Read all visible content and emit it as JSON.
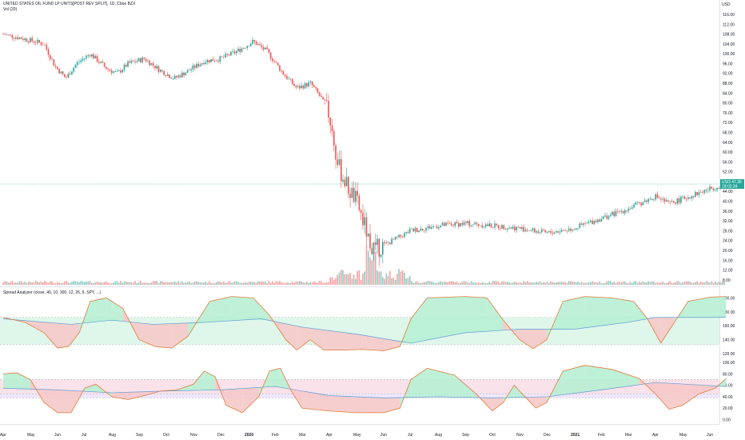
{
  "header": {
    "title": "UNITED STATES OIL FUND LP UNITS[POST REV SPLIT], 1D, Cboe BZX",
    "vol_label": "Vol (20)",
    "currency": "USD",
    "indicator_label": "Spread Analyzer (close, 40, 10, 300, 12, 26, 9, SPY, ...)"
  },
  "colors": {
    "up": "#26a69a",
    "down": "#ef5350",
    "osc_up_fill": "#b7f0d4",
    "osc_down_fill": "#f6c9c9",
    "band_green": "#d9f6e8",
    "band_purple": "#ece3fb",
    "band_pink": "#fbe0e6",
    "price_tag": "#26a69a"
  },
  "chart_data": [
    {
      "type": "candlestick",
      "title": "UNITED STATES OIL FUND LP UNITS[POST REV SPLIT], 1D, Cboe BZX",
      "ylabel": "USD",
      "ylim": [
        6.0,
        116.0
      ],
      "yticks": [
        "116.00",
        "112.00",
        "108.00",
        "104.00",
        "100.00",
        "96.00",
        "92.00",
        "88.00",
        "84.00",
        "80.00",
        "76.00",
        "72.00",
        "68.00",
        "64.00",
        "60.00",
        "56.00",
        "52.00",
        "48.00",
        "44.00",
        "40.00",
        "36.00",
        "32.00",
        "28.00",
        "24.00",
        "20.00",
        "16.00",
        "12.00",
        "8.00"
      ],
      "xticks": [
        "Apr",
        "May",
        "Jun",
        "Jul",
        "Aug",
        "Sep",
        "Oct",
        "Nov",
        "Dec",
        "2020",
        "Feb",
        "Mar",
        "Apr",
        "May",
        "Jun",
        "Jul",
        "Aug",
        "Sep",
        "Oct",
        "Nov",
        "Dec",
        "2021",
        "Feb",
        "Mar",
        "Apr",
        "May",
        "Jun"
      ],
      "last_price": "USO 47.36",
      "last_price_sub": "18:02:34",
      "price_path": [
        {
          "m": 0,
          "p": 108
        },
        {
          "m": 0.8,
          "p": 106
        },
        {
          "m": 1.5,
          "p": 104
        },
        {
          "m": 1.9,
          "p": 95
        },
        {
          "m": 2.3,
          "p": 90
        },
        {
          "m": 2.7,
          "p": 96
        },
        {
          "m": 3.2,
          "p": 100
        },
        {
          "m": 3.8,
          "p": 94
        },
        {
          "m": 4.2,
          "p": 92
        },
        {
          "m": 4.6,
          "p": 96
        },
        {
          "m": 5.2,
          "p": 98
        },
        {
          "m": 5.8,
          "p": 93
        },
        {
          "m": 6.3,
          "p": 90
        },
        {
          "m": 6.8,
          "p": 93
        },
        {
          "m": 7.4,
          "p": 97
        },
        {
          "m": 8.0,
          "p": 98
        },
        {
          "m": 8.6,
          "p": 101
        },
        {
          "m": 9.2,
          "p": 105
        },
        {
          "m": 9.7,
          "p": 101
        },
        {
          "m": 10.3,
          "p": 92
        },
        {
          "m": 10.8,
          "p": 86
        },
        {
          "m": 11.3,
          "p": 88
        },
        {
          "m": 11.7,
          "p": 82
        },
        {
          "m": 12.0,
          "p": 75
        },
        {
          "m": 12.3,
          "p": 55
        },
        {
          "m": 12.7,
          "p": 45
        },
        {
          "m": 13.0,
          "p": 40
        },
        {
          "m": 13.3,
          "p": 30
        },
        {
          "m": 13.6,
          "p": 20
        },
        {
          "m": 14.0,
          "p": 22
        },
        {
          "m": 14.5,
          "p": 25
        },
        {
          "m": 15.0,
          "p": 28
        },
        {
          "m": 16.0,
          "p": 30
        },
        {
          "m": 17.0,
          "p": 31
        },
        {
          "m": 18.0,
          "p": 30
        },
        {
          "m": 19.0,
          "p": 29
        },
        {
          "m": 20.0,
          "p": 27
        },
        {
          "m": 21.0,
          "p": 29
        },
        {
          "m": 22.0,
          "p": 33
        },
        {
          "m": 23.0,
          "p": 37
        },
        {
          "m": 24.0,
          "p": 42
        },
        {
          "m": 24.5,
          "p": 39
        },
        {
          "m": 25.0,
          "p": 41
        },
        {
          "m": 26.0,
          "p": 45
        },
        {
          "m": 26.6,
          "p": 47
        }
      ]
    },
    {
      "type": "bar",
      "title": "Vol (20)",
      "note": "volume histogram under price"
    },
    {
      "type": "line",
      "title": "Spread Analyzer (close, 40, 10, 300, 12, 26, 9, SPY, ...)",
      "ylim": [
        120,
        205
      ],
      "yticks": [
        "200.00",
        "180.00",
        "160.00",
        "140.00",
        "120.00"
      ],
      "band": [
        133,
        172
      ],
      "osc": [
        {
          "m": 0,
          "v": 172
        },
        {
          "m": 0.8,
          "v": 165
        },
        {
          "m": 1.5,
          "v": 150
        },
        {
          "m": 2.0,
          "v": 128
        },
        {
          "m": 2.4,
          "v": 130
        },
        {
          "m": 2.8,
          "v": 150
        },
        {
          "m": 3.2,
          "v": 195
        },
        {
          "m": 3.8,
          "v": 200
        },
        {
          "m": 4.4,
          "v": 185
        },
        {
          "m": 5.0,
          "v": 140
        },
        {
          "m": 5.6,
          "v": 130
        },
        {
          "m": 6.2,
          "v": 128
        },
        {
          "m": 6.8,
          "v": 145
        },
        {
          "m": 7.6,
          "v": 195
        },
        {
          "m": 8.4,
          "v": 202
        },
        {
          "m": 9.2,
          "v": 200
        },
        {
          "m": 9.8,
          "v": 175
        },
        {
          "m": 10.4,
          "v": 140
        },
        {
          "m": 10.8,
          "v": 125
        },
        {
          "m": 11.3,
          "v": 140
        },
        {
          "m": 11.8,
          "v": 125
        },
        {
          "m": 12.5,
          "v": 125
        },
        {
          "m": 13.2,
          "v": 126
        },
        {
          "m": 14.0,
          "v": 124
        },
        {
          "m": 14.6,
          "v": 130
        },
        {
          "m": 15.0,
          "v": 170
        },
        {
          "m": 15.6,
          "v": 200
        },
        {
          "m": 17.0,
          "v": 202
        },
        {
          "m": 17.8,
          "v": 200
        },
        {
          "m": 18.4,
          "v": 168
        },
        {
          "m": 19.0,
          "v": 140
        },
        {
          "m": 19.5,
          "v": 127
        },
        {
          "m": 20.0,
          "v": 140
        },
        {
          "m": 20.6,
          "v": 195
        },
        {
          "m": 21.4,
          "v": 202
        },
        {
          "m": 22.4,
          "v": 200
        },
        {
          "m": 23.2,
          "v": 195
        },
        {
          "m": 23.7,
          "v": 170
        },
        {
          "m": 24.2,
          "v": 135
        },
        {
          "m": 24.7,
          "v": 165
        },
        {
          "m": 25.2,
          "v": 195
        },
        {
          "m": 26.0,
          "v": 201
        },
        {
          "m": 26.6,
          "v": 202
        }
      ],
      "signal": [
        {
          "m": 0,
          "v": 170
        },
        {
          "m": 2.5,
          "v": 162
        },
        {
          "m": 4.0,
          "v": 168
        },
        {
          "m": 5.5,
          "v": 162
        },
        {
          "m": 7.5,
          "v": 165
        },
        {
          "m": 9.5,
          "v": 170
        },
        {
          "m": 11.0,
          "v": 158
        },
        {
          "m": 13.0,
          "v": 148
        },
        {
          "m": 15.0,
          "v": 135
        },
        {
          "m": 17.0,
          "v": 150
        },
        {
          "m": 19.0,
          "v": 155
        },
        {
          "m": 21.0,
          "v": 155
        },
        {
          "m": 23.0,
          "v": 165
        },
        {
          "m": 24.0,
          "v": 172
        },
        {
          "m": 26.6,
          "v": 172
        }
      ]
    },
    {
      "type": "line",
      "title": "",
      "ylim": [
        -5,
        110
      ],
      "yticks": [
        "100.00",
        "80.00",
        "60.00",
        "40.00",
        "20.00",
        "0.00"
      ],
      "band_purple": [
        38,
        70
      ],
      "band_pink": [
        45,
        70
      ],
      "osc": [
        {
          "m": 0,
          "v": 80
        },
        {
          "m": 0.5,
          "v": 82
        },
        {
          "m": 1.0,
          "v": 70
        },
        {
          "m": 1.5,
          "v": 30
        },
        {
          "m": 2.0,
          "v": 12
        },
        {
          "m": 2.5,
          "v": 12
        },
        {
          "m": 3.0,
          "v": 55
        },
        {
          "m": 3.4,
          "v": 62
        },
        {
          "m": 4.0,
          "v": 40
        },
        {
          "m": 4.6,
          "v": 35
        },
        {
          "m": 5.2,
          "v": 42
        },
        {
          "m": 5.8,
          "v": 50
        },
        {
          "m": 6.4,
          "v": 52
        },
        {
          "m": 7.0,
          "v": 62
        },
        {
          "m": 7.4,
          "v": 85
        },
        {
          "m": 7.8,
          "v": 75
        },
        {
          "m": 8.2,
          "v": 25
        },
        {
          "m": 8.8,
          "v": 12
        },
        {
          "m": 9.4,
          "v": 40
        },
        {
          "m": 9.8,
          "v": 85
        },
        {
          "m": 10.2,
          "v": 90
        },
        {
          "m": 10.6,
          "v": 50
        },
        {
          "m": 11.0,
          "v": 20
        },
        {
          "m": 12.0,
          "v": 15
        },
        {
          "m": 13.0,
          "v": 12
        },
        {
          "m": 14.0,
          "v": 12
        },
        {
          "m": 14.6,
          "v": 20
        },
        {
          "m": 15.0,
          "v": 70
        },
        {
          "m": 15.6,
          "v": 90
        },
        {
          "m": 16.6,
          "v": 78
        },
        {
          "m": 17.4,
          "v": 45
        },
        {
          "m": 18.0,
          "v": 15
        },
        {
          "m": 18.4,
          "v": 30
        },
        {
          "m": 18.8,
          "v": 60
        },
        {
          "m": 19.2,
          "v": 40
        },
        {
          "m": 19.6,
          "v": 20
        },
        {
          "m": 20.0,
          "v": 30
        },
        {
          "m": 20.6,
          "v": 85
        },
        {
          "m": 21.4,
          "v": 95
        },
        {
          "m": 22.4,
          "v": 88
        },
        {
          "m": 23.4,
          "v": 72
        },
        {
          "m": 24.0,
          "v": 45
        },
        {
          "m": 24.5,
          "v": 18
        },
        {
          "m": 25.0,
          "v": 25
        },
        {
          "m": 25.6,
          "v": 45
        },
        {
          "m": 26.2,
          "v": 55
        },
        {
          "m": 26.6,
          "v": 72
        }
      ],
      "signal": [
        {
          "m": 0,
          "v": 55
        },
        {
          "m": 2.0,
          "v": 52
        },
        {
          "m": 4.0,
          "v": 47
        },
        {
          "m": 6.0,
          "v": 50
        },
        {
          "m": 8.0,
          "v": 52
        },
        {
          "m": 10.0,
          "v": 58
        },
        {
          "m": 12.0,
          "v": 42
        },
        {
          "m": 14.0,
          "v": 38
        },
        {
          "m": 16.0,
          "v": 40
        },
        {
          "m": 18.0,
          "v": 38
        },
        {
          "m": 20.0,
          "v": 40
        },
        {
          "m": 22.0,
          "v": 52
        },
        {
          "m": 24.0,
          "v": 65
        },
        {
          "m": 26.6,
          "v": 58
        }
      ]
    }
  ]
}
